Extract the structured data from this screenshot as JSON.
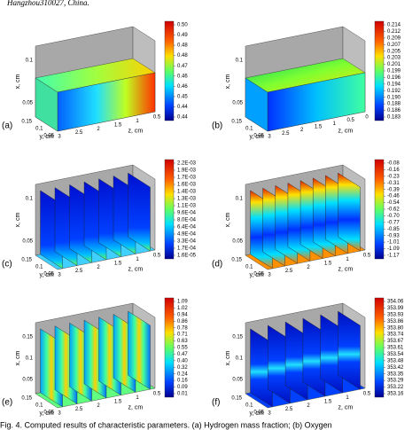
{
  "header": "Hangzhou310027, China.",
  "panels": [
    {
      "label": "(a)",
      "x_label": "x, cm",
      "y_label": "y, cm",
      "z_label": "z, cm",
      "x_ticks": [
        "0.05",
        "0.1"
      ],
      "y_ticks": [
        "0.15",
        "0.1",
        "0.05"
      ],
      "z_ticks": [
        "3",
        "2.5",
        "2",
        "1.5",
        "1",
        "0.5"
      ],
      "colorbar": [
        "0.50",
        "0.49",
        "0.48",
        "0.48",
        "0.47",
        "0.46",
        "0.46",
        "0.45",
        "0.44",
        "0.44"
      ]
    },
    {
      "label": "(b)",
      "x_label": "x, cm",
      "y_label": "y, cm",
      "z_label": "z, cm",
      "x_ticks": [
        "0.05",
        "0.1"
      ],
      "y_ticks": [
        "0.15",
        "0.1",
        "0.05"
      ],
      "z_ticks": [
        "3",
        "2.5",
        "2",
        "1.5",
        "1",
        "0.5",
        "0"
      ],
      "colorbar": [
        "0.214",
        "0.212",
        "0.209",
        "0.207",
        "0.205",
        "0.203",
        "0.201",
        "0.199",
        "0.196",
        "0.194",
        "0.192",
        "0.190",
        "0.188",
        "0.186",
        "0.183"
      ]
    },
    {
      "label": "(c)",
      "x_label": "x, cm",
      "y_label": "y, cm",
      "z_label": "z, cm",
      "x_ticks": [
        "0.05",
        "0.1"
      ],
      "y_ticks": [
        "0.15",
        "0.1",
        "0.05"
      ],
      "z_ticks": [
        "3",
        "2.5",
        "2",
        "1.5",
        "1",
        "0.5"
      ],
      "colorbar": [
        "2.2E-03",
        "1.9E-03",
        "1.7E-03",
        "1.6E-03",
        "1.4E-03",
        "1.3E-03",
        "1.1E-03",
        "9.6E-04",
        "8.0E-04",
        "6.4E-04",
        "4.9E-04",
        "3.3E-04",
        "1.7E-04",
        "1.6E-05"
      ]
    },
    {
      "label": "(d)",
      "x_label": "x, cm",
      "y_label": "y, cm",
      "z_label": "z, cm",
      "x_ticks": [
        "0.05",
        "0.1"
      ],
      "y_ticks": [
        "0.15",
        "0.1",
        "0.05"
      ],
      "z_ticks": [
        "3",
        "2.5",
        "2",
        "1.5",
        "1",
        "0.5"
      ],
      "colorbar": [
        "-0.08",
        "-0.16",
        "-0.23",
        "-0.31",
        "-0.39",
        "-0.46",
        "-0.54",
        "-0.62",
        "-0.70",
        "-0.77",
        "-0.85",
        "-0.93",
        "-1.01",
        "-1.09",
        "-1.17"
      ]
    },
    {
      "label": "(e)",
      "x_label": "x, cm",
      "y_label": "y, cm",
      "z_label": "z, cm",
      "x_ticks": [
        "0.05",
        "0.1",
        "0.15"
      ],
      "y_ticks": [
        "0.15",
        "0.1",
        "0.05"
      ],
      "z_ticks": [
        "3",
        "2.5",
        "2",
        "1.5",
        "1",
        "0.5"
      ],
      "colorbar": [
        "1.09",
        "1.02",
        "0.94",
        "0.86",
        "0.78",
        "0.71",
        "0.63",
        "0.55",
        "0.47",
        "0.40",
        "0.32",
        "0.24",
        "0.16",
        "0.09",
        "0.01"
      ]
    },
    {
      "label": "(f)",
      "x_label": "x, cm",
      "y_label": "y, cm",
      "z_label": "z, cm",
      "x_ticks": [
        "0.05",
        "0.1",
        "0.15"
      ],
      "y_ticks": [
        "0.15",
        "0.1",
        "0.05"
      ],
      "z_ticks": [
        "3",
        "2.5",
        "2",
        "1.5",
        "1",
        "0.5"
      ],
      "colorbar": [
        "354.06",
        "353.99",
        "353.93",
        "353.86",
        "353.80",
        "353.74",
        "353.67",
        "353.61",
        "353.54",
        "353.48",
        "353.42",
        "353.35",
        "353.29",
        "353.22",
        "353.16"
      ]
    }
  ],
  "caption": "Fig. 4. Computed results of characteristic parameters. (a) Hydrogen mass fraction; (b) Oxygen"
}
